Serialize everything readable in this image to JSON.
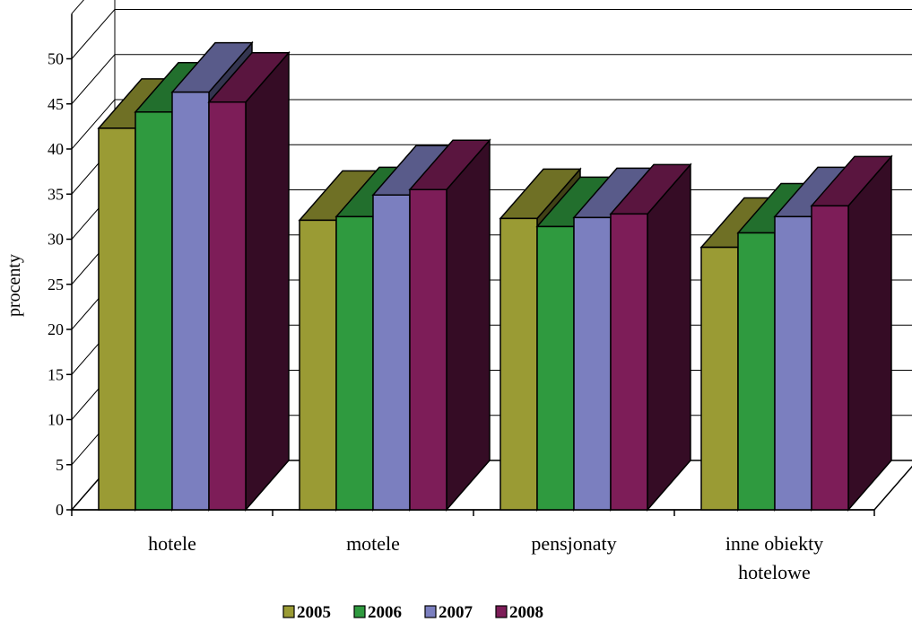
{
  "chart_data": {
    "type": "bar",
    "title": "",
    "xlabel": "",
    "ylabel": "procenty",
    "ylim": [
      0,
      50
    ],
    "yticks": [
      "0",
      "5",
      "10",
      "15",
      "20",
      "25",
      "30",
      "35",
      "40",
      "45",
      "50"
    ],
    "categories": [
      [
        "hotele"
      ],
      [
        "motele"
      ],
      [
        "pensjonaty"
      ],
      [
        "inne obiekty",
        "hotelowe"
      ]
    ],
    "series": [
      {
        "name": "2005",
        "color": "#9a9b34",
        "values": [
          42.3,
          32.1,
          32.3,
          29.1
        ]
      },
      {
        "name": "2006",
        "color": "#2f9a3f",
        "values": [
          44.1,
          32.5,
          31.4,
          30.7
        ]
      },
      {
        "name": "2007",
        "color": "#7b7fbf",
        "values": [
          46.3,
          34.9,
          32.4,
          32.5
        ]
      },
      {
        "name": "2008",
        "color": "#7d1d58",
        "values": [
          45.2,
          35.5,
          32.8,
          33.7
        ]
      }
    ],
    "grid": true,
    "legend_position": "bottom",
    "style": "3d-clustered-column"
  }
}
